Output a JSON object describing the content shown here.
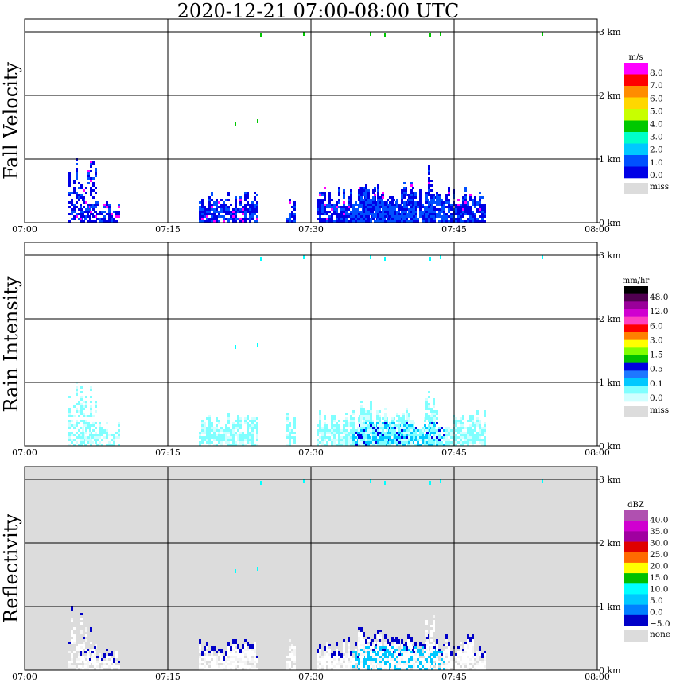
{
  "title": "2020-12-21   07:00-08:00 UTC",
  "chart_data": [
    {
      "type": "heatmap",
      "ylabel": "Fall Velocity",
      "unit": "m/s",
      "x_ticks": [
        "07:00",
        "07:15",
        "07:30",
        "07:45",
        "08:00"
      ],
      "y_ticks": [
        "0 km",
        "1 km",
        "2 km",
        "3 km"
      ],
      "ylim_km": [
        0,
        3.2
      ],
      "legend": {
        "values": [
          "8.0",
          "7.0",
          "6.0",
          "5.0",
          "4.0",
          "3.0",
          "2.0",
          "1.0",
          "0.0"
        ],
        "colors": [
          "#ff00ff",
          "#ff0000",
          "#ff8c00",
          "#ffd700",
          "#c8ff00",
          "#00c800",
          "#00ffc8",
          "#00c8ff",
          "#0050ff",
          "#0000e6"
        ],
        "missing_label": "miss",
        "missing_color": "#dcdcdc"
      },
      "background": "#ffffff"
    },
    {
      "type": "heatmap",
      "ylabel": "Rain Intensity",
      "unit": "mm/hr",
      "x_ticks": [
        "07:00",
        "07:15",
        "07:30",
        "07:45",
        "08:00"
      ],
      "y_ticks": [
        "0 km",
        "1 km",
        "2 km",
        "3 km"
      ],
      "ylim_km": [
        0,
        3.2
      ],
      "legend": {
        "values": [
          "48.0",
          "12.0",
          "6.0",
          "3.0",
          "1.5",
          "0.5",
          "0.1",
          "0.0"
        ],
        "colors": [
          "#000000",
          "#500050",
          "#9a009a",
          "#d000d0",
          "#ff40c0",
          "#ff0000",
          "#ff8000",
          "#ffff00",
          "#80ff00",
          "#00c000",
          "#0000e0",
          "#1e78ff",
          "#00c8ff",
          "#80ffff",
          "#d0ffff"
        ],
        "missing_label": "miss",
        "missing_color": "#dcdcdc"
      },
      "background": "#ffffff"
    },
    {
      "type": "heatmap",
      "ylabel": "Reflectivity",
      "unit": "dBZ",
      "x_ticks": [
        "07:00",
        "07:15",
        "07:30",
        "07:45",
        "08:00"
      ],
      "y_ticks": [
        "0 km",
        "1 km",
        "2 km",
        "3 km"
      ],
      "ylim_km": [
        0,
        3.2
      ],
      "legend": {
        "values": [
          "40.0",
          "35.0",
          "30.0",
          "25.0",
          "20.0",
          "15.0",
          "10.0",
          "5.0",
          "0.0",
          "−5.0"
        ],
        "colors": [
          "#b050b0",
          "#d000d0",
          "#a000a0",
          "#e00000",
          "#ff6a00",
          "#ffff00",
          "#00c000",
          "#00ffff",
          "#00c8ff",
          "#0080ff",
          "#0000c8"
        ],
        "missing_label": "none",
        "missing_color": "#dcdcdc"
      },
      "background": "#dcdcdc"
    }
  ]
}
